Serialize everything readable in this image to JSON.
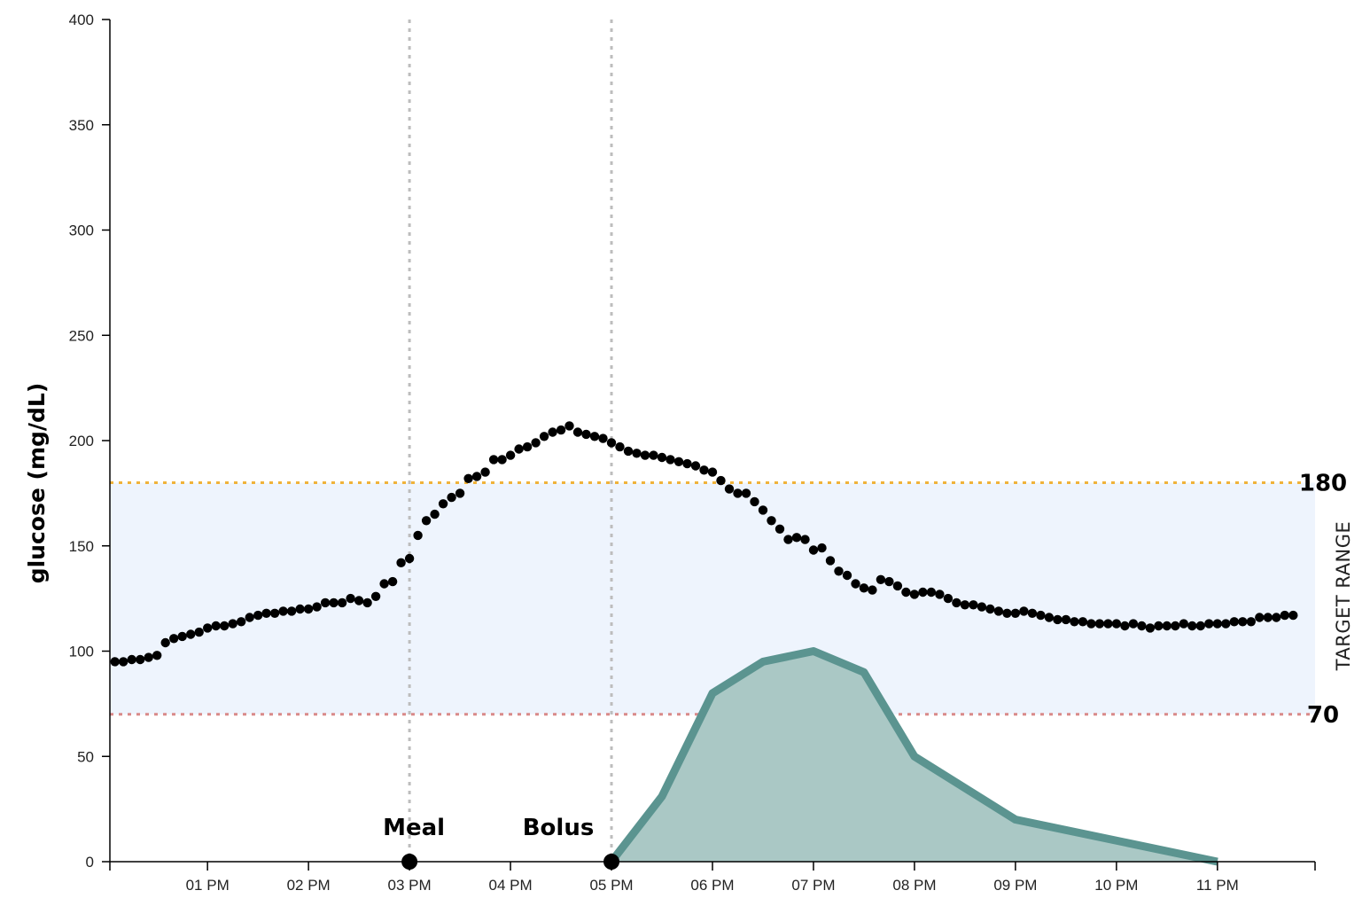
{
  "chart_data": {
    "type": "scatter",
    "ylabel": "glucose (mg/dL)",
    "ylim": [
      0,
      400
    ],
    "yticks": [
      0,
      50,
      100,
      150,
      200,
      250,
      300,
      350,
      400
    ],
    "xlim": [
      "12:02 PM",
      "11:58 PM"
    ],
    "xticks": [
      "01 PM",
      "02 PM",
      "03 PM",
      "04 PM",
      "05 PM",
      "06 PM",
      "07 PM",
      "08 PM",
      "09 PM",
      "10 PM",
      "11 PM"
    ],
    "target_range": {
      "low": 70,
      "high": 180,
      "label": "TARGET RANGE",
      "band_color": "#eef4fd"
    },
    "thresholds": [
      {
        "value": 180,
        "label": "180",
        "color": "#f0b33a"
      },
      {
        "value": 70,
        "label": "70",
        "color": "#d98a8a"
      }
    ],
    "events": [
      {
        "label": "Meal",
        "time": "03 PM"
      },
      {
        "label": "Bolus",
        "time": "05 PM"
      }
    ],
    "glucose_series": {
      "color": "#000000",
      "start_time": "12:05 PM",
      "interval_minutes": 5,
      "values": [
        95,
        95,
        96,
        96,
        97,
        98,
        104,
        106,
        107,
        108,
        109,
        111,
        112,
        112,
        113,
        114,
        116,
        117,
        118,
        118,
        119,
        119,
        120,
        120,
        121,
        123,
        123,
        123,
        125,
        124,
        123,
        126,
        132,
        133,
        142,
        144,
        155,
        162,
        165,
        170,
        173,
        175,
        182,
        183,
        185,
        191,
        191,
        193,
        196,
        197,
        199,
        202,
        204,
        205,
        207,
        204,
        203,
        202,
        201,
        199,
        197,
        195,
        194,
        193,
        193,
        192,
        191,
        190,
        189,
        188,
        186,
        185,
        181,
        177,
        175,
        175,
        171,
        167,
        162,
        158,
        153,
        154,
        153,
        148,
        149,
        143,
        138,
        136,
        132,
        130,
        129,
        134,
        133,
        131,
        128,
        127,
        128,
        128,
        127,
        125,
        123,
        122,
        122,
        121,
        120,
        119,
        118,
        118,
        119,
        118,
        117,
        116,
        115,
        115,
        114,
        114,
        113,
        113,
        113,
        113,
        112,
        113,
        112,
        111,
        112,
        112,
        112,
        113,
        112,
        112,
        113,
        113,
        113,
        114,
        114,
        114,
        116,
        116,
        116,
        117,
        117
      ]
    },
    "insulin_series": {
      "type": "area",
      "color": "#5b9490",
      "fill": "#aac8c5",
      "points": [
        {
          "time": "05 PM",
          "value": 0
        },
        {
          "time": "05:30 PM",
          "value": 31
        },
        {
          "time": "06 PM",
          "value": 80
        },
        {
          "time": "06:30 PM",
          "value": 95
        },
        {
          "time": "07 PM",
          "value": 100
        },
        {
          "time": "07:30 PM",
          "value": 90
        },
        {
          "time": "08 PM",
          "value": 50
        },
        {
          "time": "09 PM",
          "value": 20
        },
        {
          "time": "11 PM",
          "value": 0
        }
      ]
    }
  }
}
